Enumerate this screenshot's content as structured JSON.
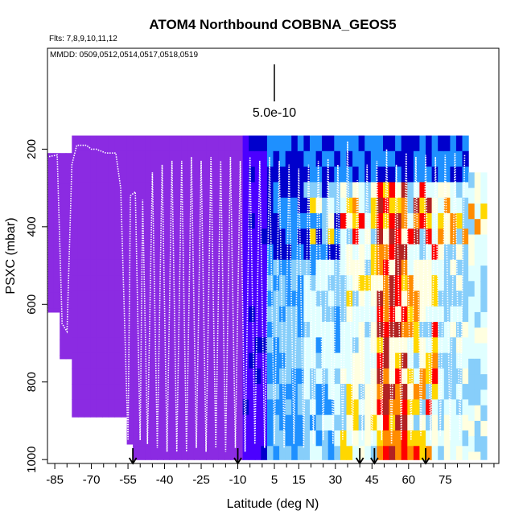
{
  "chart_data": {
    "type": "heatmap",
    "title": "ATOM4 Northbound COBBNA_GEOS5",
    "subtitle_flights": "Flts: 7,8,9,10,11,12",
    "subtitle_dates": "MMDD: 0509,0512,0514,0517,0518,0519",
    "scale_label": "5.0e-10",
    "xlabel": "Latitude (deg N)",
    "ylabel": "PSXC (mbar)",
    "xlim": [
      -88,
      97
    ],
    "ylim": [
      1010,
      -60
    ],
    "x_ticks": [
      -85,
      -70,
      -55,
      -40,
      -25,
      -10,
      5,
      15,
      30,
      45,
      60,
      75
    ],
    "x_minor_ticks": [
      -80,
      -75,
      -65,
      -60,
      -50,
      -45,
      -35,
      -30,
      -20,
      -15,
      -5,
      0,
      10,
      20,
      25,
      35,
      40,
      50,
      55,
      65,
      70,
      80,
      85,
      90,
      95
    ],
    "y_ticks": [
      200,
      400,
      600,
      800,
      1000
    ],
    "arrow_latitudes": [
      -53,
      -10,
      40,
      46,
      67
    ],
    "flight_profile_vertices": [
      [
        -88,
        620
      ],
      [
        -88,
        220
      ],
      [
        -84,
        215
      ],
      [
        -82,
        650
      ],
      [
        -80,
        670
      ],
      [
        -78,
        240
      ],
      [
        -76,
        190
      ],
      [
        -72,
        190
      ],
      [
        -70,
        200
      ],
      [
        -68,
        200
      ],
      [
        -64,
        210
      ],
      [
        -60,
        210
      ],
      [
        -58,
        300
      ],
      [
        -55,
        950
      ],
      [
        -54,
        320
      ],
      [
        -52,
        310
      ],
      [
        -50,
        950
      ],
      [
        -49,
        330
      ],
      [
        -47,
        960
      ],
      [
        -45,
        260
      ],
      [
        -43,
        970
      ],
      [
        -41,
        240
      ],
      [
        -39,
        980
      ],
      [
        -37,
        230
      ],
      [
        -35,
        980
      ],
      [
        -33,
        230
      ],
      [
        -31,
        980
      ],
      [
        -29,
        220
      ],
      [
        -27,
        970
      ],
      [
        -25,
        230
      ],
      [
        -23,
        980
      ],
      [
        -21,
        220
      ],
      [
        -19,
        970
      ],
      [
        -17,
        230
      ],
      [
        -15,
        980
      ],
      [
        -13,
        220
      ],
      [
        -11,
        970
      ],
      [
        -9,
        230
      ],
      [
        -7,
        980
      ],
      [
        -5,
        220
      ],
      [
        -3,
        960
      ],
      [
        -1,
        230
      ],
      [
        1,
        970
      ],
      [
        3,
        220
      ],
      [
        5,
        960
      ],
      [
        7,
        230
      ],
      [
        9,
        970
      ],
      [
        11,
        240
      ],
      [
        13,
        960
      ],
      [
        15,
        250
      ],
      [
        17,
        970
      ],
      [
        19,
        240
      ],
      [
        21,
        960
      ],
      [
        23,
        230
      ],
      [
        25,
        950
      ],
      [
        27,
        225
      ],
      [
        29,
        960
      ],
      [
        31,
        240
      ],
      [
        33,
        950
      ],
      [
        35,
        180
      ],
      [
        37,
        960
      ],
      [
        39,
        280
      ],
      [
        41,
        950
      ],
      [
        43,
        240
      ],
      [
        45,
        960
      ],
      [
        47,
        230
      ],
      [
        49,
        950
      ],
      [
        51,
        200
      ],
      [
        53,
        960
      ],
      [
        55,
        240
      ],
      [
        57,
        950
      ],
      [
        59,
        210
      ],
      [
        61,
        950
      ],
      [
        63,
        220
      ],
      [
        65,
        940
      ],
      [
        67,
        215
      ],
      [
        69,
        950
      ],
      [
        71,
        220
      ],
      [
        73,
        940
      ],
      [
        75,
        215
      ],
      [
        77,
        950
      ],
      [
        79,
        210
      ],
      [
        81,
        950
      ],
      [
        83,
        215
      ]
    ],
    "colorbar": [
      "#8B2BE2",
      "#4B00FF",
      "#0000CC",
      "#1E90FF",
      "#87CEFA",
      "#E0FFFF",
      "#FFFFE0",
      "#FFD700",
      "#FF8C00",
      "#FF0000",
      "#B22222"
    ]
  }
}
